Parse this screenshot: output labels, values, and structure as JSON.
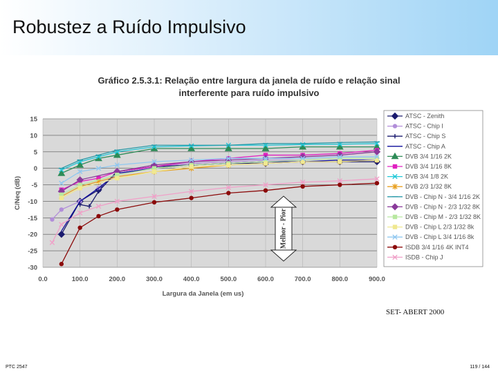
{
  "slide": {
    "title": "Robustez a Ruído Impulsivo",
    "source": "SET- ABERT 2000",
    "course": "PTC 2547",
    "page": "119 / 144"
  },
  "chart_data": {
    "type": "line",
    "title": [
      "Gráfico 2.5.3.1: Relação entre largura da janela de ruído e relação sinal",
      "interferente para ruído impulsivo"
    ],
    "x_label": "Largura da Janela (em us)",
    "y_label": "C/Neq (dB)",
    "annotation": "Melhor - Pior",
    "xlim": [
      0,
      900
    ],
    "ylim": [
      -30,
      15
    ],
    "xticks": [
      {
        "value": 0,
        "label": "0.0"
      },
      {
        "value": 100,
        "label": "100.0"
      },
      {
        "value": 200,
        "label": "200.0"
      },
      {
        "value": 300,
        "label": "300.0"
      },
      {
        "value": 400,
        "label": "400.0"
      },
      {
        "value": 500,
        "label": "500.0"
      },
      {
        "value": 600,
        "label": "600.0"
      },
      {
        "value": 700,
        "label": "700.0"
      },
      {
        "value": 800,
        "label": "800.0"
      },
      {
        "value": 900,
        "label": "900.0"
      }
    ],
    "yticks": [
      15,
      10,
      5,
      0,
      -5,
      -10,
      -15,
      -20,
      -25,
      -30
    ],
    "grid": true,
    "series": [
      {
        "name": "ATSC - Zenith",
        "color": "#1a1a6e",
        "marker": "diamond",
        "x": [
          50,
          100,
          150,
          200,
          300,
          400,
          500,
          600,
          700,
          800,
          900
        ],
        "values": [
          -20,
          -10,
          -6.5,
          -1,
          0.5,
          1,
          1.5,
          1.5,
          2,
          2,
          2
        ]
      },
      {
        "name": "ATSC - Chip I",
        "color": "#b28ed9",
        "marker": "circle",
        "x": [
          25,
          50,
          100,
          150,
          200,
          300,
          400,
          500,
          600,
          700,
          800,
          900
        ],
        "values": [
          -15.5,
          -12.5,
          -10,
          -6,
          -2,
          0.5,
          1.5,
          2,
          2.5,
          2.5,
          3,
          3
        ]
      },
      {
        "name": "ATSC - Chip S",
        "color": "#1a1a6e",
        "marker": "plus",
        "x": [
          100,
          125,
          150,
          200,
          300,
          400,
          500,
          600,
          700,
          800,
          900
        ],
        "values": [
          -11,
          -11.5,
          -7,
          -1,
          0.5,
          1,
          1.5,
          2,
          2,
          2,
          2
        ]
      },
      {
        "name": "ATSC - Chip A",
        "color": "#0a0a9a",
        "marker": "none",
        "x": [
          50,
          100,
          150,
          200,
          300,
          400,
          500,
          600,
          700,
          800,
          900
        ],
        "values": [
          -19,
          -10,
          -6,
          -1.5,
          0,
          1,
          1.5,
          2,
          2,
          2.5,
          2.5
        ]
      },
      {
        "name": "DVB 3/4 1/16 2K",
        "color": "#2e8b57",
        "marker": "triangle",
        "x": [
          50,
          100,
          150,
          200,
          300,
          400,
          500,
          600,
          700,
          800,
          900
        ],
        "values": [
          -1.5,
          1,
          3,
          4,
          6,
          6,
          6,
          6,
          6.5,
          6.5,
          6.5
        ]
      },
      {
        "name": "DVB 3/4 1/16 8K",
        "color": "#e020c0",
        "marker": "square",
        "x": [
          50,
          100,
          150,
          200,
          300,
          400,
          500,
          600,
          700,
          800,
          900
        ],
        "values": [
          -6.5,
          -4,
          -3,
          -1,
          0.5,
          2,
          3,
          4,
          4,
          4.5,
          5.5
        ]
      },
      {
        "name": "DVB 3/4 1/8 2K",
        "color": "#20c8d8",
        "marker": "x",
        "x": [
          50,
          100,
          150,
          200,
          300,
          400,
          500,
          600,
          700,
          800,
          900
        ],
        "values": [
          -0.5,
          2,
          3.5,
          5,
          6.5,
          6.8,
          7,
          7,
          7.2,
          7.3,
          7.5
        ]
      },
      {
        "name": "DVB 2/3 1/32 8K",
        "color": "#e8a020",
        "marker": "star",
        "x": [
          50,
          100,
          150,
          200,
          300,
          400,
          500,
          600,
          700,
          800,
          900
        ],
        "values": [
          -8.5,
          -5.5,
          -4,
          -2.5,
          -1,
          0,
          1,
          1.5,
          2,
          2,
          2.5
        ]
      },
      {
        "name": "DVB - Chip N - 3/4 1/16 2K",
        "color": "#2a9aa8",
        "marker": "dash",
        "x": [
          50,
          100,
          150,
          200,
          300,
          400,
          500,
          600,
          700,
          800,
          900
        ],
        "values": [
          0,
          2.5,
          4,
          5.5,
          7,
          7,
          7,
          7.5,
          7.5,
          7.8,
          8
        ]
      },
      {
        "name": "DVB - Chip N - 2/3 1/32 8K",
        "color": "#8a3a9a",
        "marker": "diamond",
        "x": [
          50,
          100,
          200,
          300,
          400,
          500,
          600,
          700,
          800,
          900
        ],
        "values": [
          -7,
          -3.5,
          -1,
          1,
          2,
          2.5,
          3,
          3.5,
          4,
          5
        ]
      },
      {
        "name": "DVB - Chip M - 2/3 1/32 8K",
        "color": "#b8e8a0",
        "marker": "square",
        "x": [
          50,
          100,
          200,
          300,
          400,
          500,
          600,
          700,
          800,
          900
        ],
        "values": [
          -8,
          -5,
          -2,
          0,
          1,
          1.5,
          2,
          2.5,
          3,
          3
        ]
      },
      {
        "name": "DVB - Chip L 2/3 1/32 8k",
        "color": "#f0e890",
        "marker": "square",
        "x": [
          50,
          100,
          200,
          300,
          400,
          500,
          600,
          700,
          800,
          900
        ],
        "values": [
          -9,
          -6,
          -3,
          -1,
          0.5,
          1,
          1.5,
          2,
          2,
          2.5
        ]
      },
      {
        "name": "DVB - Chip L 3/4 1/16 8k",
        "color": "#90c8f0",
        "marker": "x",
        "x": [
          50,
          100,
          150,
          200,
          300,
          400,
          500,
          600,
          700,
          800,
          900
        ],
        "values": [
          -4.5,
          -1,
          0,
          1,
          2,
          2.5,
          3,
          3,
          3,
          3.5,
          3.5
        ]
      },
      {
        "name": "ISDB 3/4 1/16 4K INT4",
        "color": "#8b0a0a",
        "marker": "circle",
        "x": [
          50,
          100,
          150,
          200,
          300,
          400,
          500,
          600,
          700,
          800,
          900
        ],
        "values": [
          -29,
          -18,
          -14.5,
          -12.5,
          -10.3,
          -9,
          -7.5,
          -6.7,
          -5.5,
          -5,
          -4.5
        ]
      },
      {
        "name": "ISDB - Chip J",
        "color": "#f0a0c8",
        "marker": "x",
        "x": [
          25,
          50,
          100,
          150,
          200,
          300,
          400,
          500,
          600,
          700,
          800,
          900
        ],
        "values": [
          -22.5,
          -17,
          -13.5,
          -11.5,
          -10,
          -8.5,
          -7,
          -5.8,
          -5,
          -4.2,
          -3.8,
          -3.2
        ]
      }
    ]
  }
}
